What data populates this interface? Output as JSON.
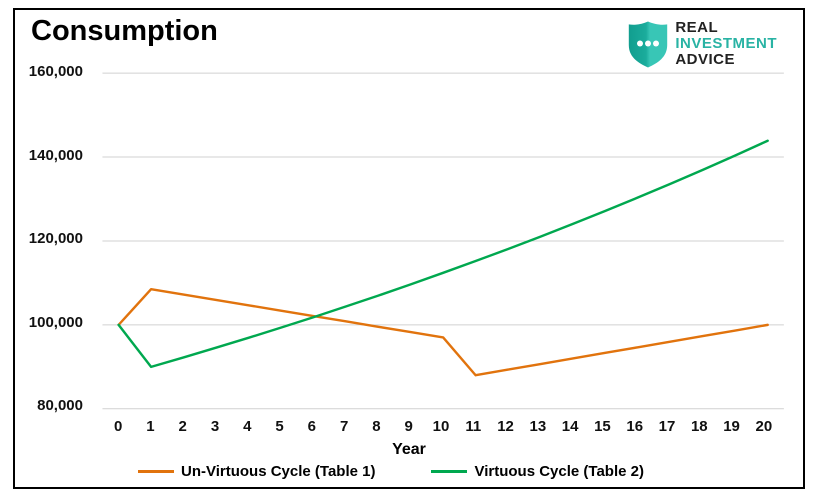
{
  "title": "Consumption",
  "logo": {
    "line1": "REAL",
    "line2": "INVESTMENT",
    "line3": "ADVICE",
    "shield_icon": "shield-with-three-dots",
    "teal_light": "#38C6B6",
    "teal_dark": "#119E8F",
    "text_teal": "#29B3A4",
    "text_dark": "#222222"
  },
  "chart_data": {
    "type": "line",
    "title": "Consumption",
    "xlabel": "Year",
    "ylabel": "",
    "grid": "horizontal",
    "legend_position": "bottom",
    "ylim": [
      80000,
      160000
    ],
    "yticks": [
      {
        "value": 80000,
        "label": "80,000"
      },
      {
        "value": 100000,
        "label": "100,000"
      },
      {
        "value": 120000,
        "label": "120,000"
      },
      {
        "value": 140000,
        "label": "140,000"
      },
      {
        "value": 160000,
        "label": "160,000"
      }
    ],
    "x": [
      0,
      1,
      2,
      3,
      4,
      5,
      6,
      7,
      8,
      9,
      10,
      11,
      12,
      13,
      14,
      15,
      16,
      17,
      18,
      19,
      20
    ],
    "series": [
      {
        "name": "Un-Virtuous Cycle (Table 1)",
        "color": "#E1730D",
        "values": [
          100000,
          108500,
          107222,
          105944,
          104667,
          103389,
          102111,
          100833,
          99556,
          98278,
          97000,
          88000,
          89333,
          90667,
          92000,
          93333,
          94667,
          96000,
          97333,
          98667,
          100000
        ]
      },
      {
        "name": "Virtuous Cycle (Table 2)",
        "color": "#00A84F",
        "values": [
          100000,
          90000,
          92250,
          94556,
          96920,
          99343,
          101827,
          104373,
          106982,
          109657,
          112398,
          115208,
          118088,
          121040,
          124066,
          127168,
          130347,
          133606,
          136946,
          140370,
          143879
        ]
      }
    ]
  }
}
